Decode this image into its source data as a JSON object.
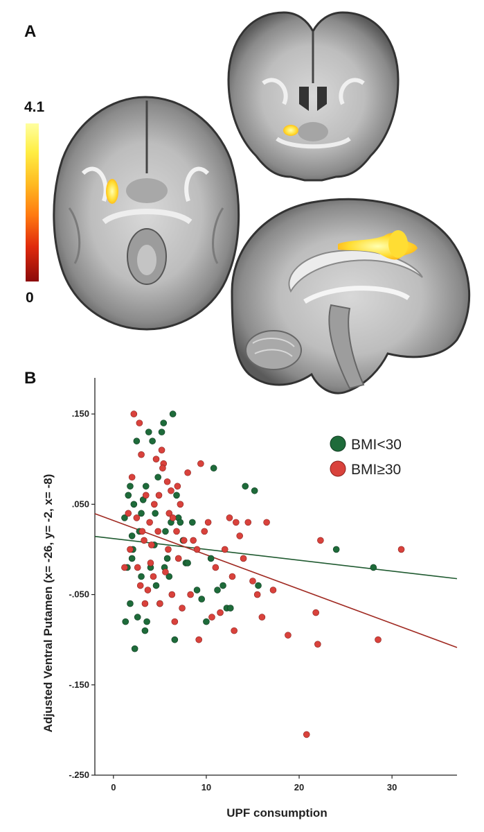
{
  "panels": {
    "a_label": "A",
    "b_label": "B"
  },
  "colorbar": {
    "max_label": "4.1",
    "min_label": "0",
    "colors": [
      "#ffffa0",
      "#ffee44",
      "#ffbb22",
      "#ff7a10",
      "#e02a0c",
      "#8b0a0a"
    ]
  },
  "brain_views": [
    {
      "view": "axial",
      "activation": "left ventral putamen"
    },
    {
      "view": "coronal",
      "activation": "left ventral putamen"
    },
    {
      "view": "sagittal",
      "activation": "cingulate cortex"
    }
  ],
  "chart_data": {
    "type": "scatter",
    "title": "",
    "xlabel": "UPF consumption",
    "ylabel": "Adjusted Ventral Putamen (x= -26, y= -2, x= -8)",
    "xlim": [
      -2,
      37
    ],
    "ylim": [
      -0.25,
      0.19
    ],
    "xticks": [
      0,
      10,
      20,
      30
    ],
    "xtick_labels": [
      "0",
      "10",
      "20",
      "30"
    ],
    "yticks": [
      -0.25,
      -0.15,
      -0.05,
      0.05,
      0.15
    ],
    "ytick_labels": [
      "-.250",
      "-.150",
      "-.050",
      ".050",
      ".150"
    ],
    "grid": false,
    "legend_position": "top-right",
    "series": [
      {
        "name": "BMI<30",
        "color": "#1e6b3a",
        "fit": {
          "intercept": 0.012,
          "slope": -0.0012
        },
        "points": [
          [
            1.2,
            0.035
          ],
          [
            1.5,
            -0.02
          ],
          [
            1.6,
            0.06
          ],
          [
            1.8,
            0.07
          ],
          [
            1.3,
            -0.08
          ],
          [
            2.0,
            -0.01
          ],
          [
            2.2,
            0.05
          ],
          [
            2.1,
            0.0
          ],
          [
            2.3,
            -0.11
          ],
          [
            2.5,
            0.12
          ],
          [
            2.6,
            -0.075
          ],
          [
            2.8,
            0.02
          ],
          [
            3.0,
            0.04
          ],
          [
            3.2,
            0.055
          ],
          [
            3.4,
            -0.09
          ],
          [
            3.5,
            0.07
          ],
          [
            3.8,
            0.13
          ],
          [
            4.0,
            -0.02
          ],
          [
            4.2,
            0.12
          ],
          [
            4.4,
            0.005
          ],
          [
            4.6,
            -0.04
          ],
          [
            4.8,
            0.08
          ],
          [
            5.0,
            -0.06
          ],
          [
            5.2,
            0.13
          ],
          [
            5.4,
            0.14
          ],
          [
            5.6,
            0.02
          ],
          [
            5.8,
            -0.01
          ],
          [
            6.0,
            -0.03
          ],
          [
            6.2,
            0.03
          ],
          [
            6.4,
            0.15
          ],
          [
            6.6,
            -0.1
          ],
          [
            6.8,
            0.06
          ],
          [
            7.0,
            0.035
          ],
          [
            7.2,
            0.03
          ],
          [
            7.5,
            0.01
          ],
          [
            7.8,
            -0.015
          ],
          [
            8.0,
            -0.015
          ],
          [
            8.5,
            0.03
          ],
          [
            9.0,
            -0.045
          ],
          [
            9.5,
            -0.055
          ],
          [
            10.0,
            -0.08
          ],
          [
            10.5,
            -0.01
          ],
          [
            10.8,
            0.09
          ],
          [
            11.2,
            -0.045
          ],
          [
            11.8,
            -0.04
          ],
          [
            12.2,
            -0.065
          ],
          [
            12.6,
            -0.065
          ],
          [
            14.2,
            0.07
          ],
          [
            15.2,
            0.065
          ],
          [
            15.6,
            -0.04
          ],
          [
            24.0,
            0.0
          ],
          [
            28.0,
            -0.02
          ],
          [
            1.8,
            -0.06
          ],
          [
            3.6,
            -0.08
          ],
          [
            4.5,
            0.04
          ],
          [
            2.0,
            0.015
          ],
          [
            5.5,
            -0.02
          ],
          [
            3.0,
            -0.03
          ]
        ]
      },
      {
        "name": "BMI≥30",
        "color": "#d9423c",
        "fit": {
          "intercept": 0.032,
          "slope": -0.0038
        },
        "points": [
          [
            1.2,
            -0.02
          ],
          [
            1.8,
            0.0
          ],
          [
            2.2,
            0.15
          ],
          [
            2.5,
            0.035
          ],
          [
            2.8,
            0.14
          ],
          [
            2.9,
            -0.04
          ],
          [
            3.1,
            0.02
          ],
          [
            3.3,
            0.01
          ],
          [
            3.5,
            0.06
          ],
          [
            3.7,
            -0.045
          ],
          [
            3.9,
            0.03
          ],
          [
            4.1,
            0.005
          ],
          [
            4.3,
            -0.03
          ],
          [
            4.4,
            0.05
          ],
          [
            4.6,
            0.1
          ],
          [
            4.8,
            0.02
          ],
          [
            5.0,
            -0.06
          ],
          [
            5.2,
            0.11
          ],
          [
            5.4,
            0.095
          ],
          [
            5.6,
            -0.025
          ],
          [
            5.8,
            0.075
          ],
          [
            6.0,
            0.04
          ],
          [
            6.2,
            0.065
          ],
          [
            6.4,
            0.035
          ],
          [
            6.6,
            -0.08
          ],
          [
            6.8,
            0.02
          ],
          [
            7.0,
            -0.01
          ],
          [
            7.2,
            0.05
          ],
          [
            7.6,
            0.01
          ],
          [
            8.0,
            0.085
          ],
          [
            8.3,
            -0.05
          ],
          [
            8.6,
            0.01
          ],
          [
            9.0,
            0.0
          ],
          [
            9.2,
            -0.1
          ],
          [
            9.4,
            0.095
          ],
          [
            9.8,
            0.02
          ],
          [
            10.2,
            0.03
          ],
          [
            10.6,
            -0.075
          ],
          [
            11.0,
            -0.02
          ],
          [
            11.5,
            -0.07
          ],
          [
            12.0,
            0.0
          ],
          [
            12.5,
            0.035
          ],
          [
            12.8,
            -0.03
          ],
          [
            13.0,
            -0.09
          ],
          [
            13.2,
            0.03
          ],
          [
            13.6,
            0.015
          ],
          [
            14.0,
            -0.01
          ],
          [
            14.5,
            0.03
          ],
          [
            15.0,
            -0.035
          ],
          [
            15.5,
            -0.05
          ],
          [
            16.0,
            -0.075
          ],
          [
            16.5,
            0.03
          ],
          [
            17.2,
            -0.045
          ],
          [
            18.8,
            -0.095
          ],
          [
            21.8,
            -0.07
          ],
          [
            22.0,
            -0.105
          ],
          [
            22.3,
            0.01
          ],
          [
            20.8,
            -0.205
          ],
          [
            28.5,
            -0.1
          ],
          [
            31.0,
            0.0
          ],
          [
            2.0,
            0.08
          ],
          [
            3.4,
            -0.06
          ],
          [
            5.3,
            0.09
          ],
          [
            4.0,
            -0.015
          ],
          [
            6.3,
            -0.05
          ],
          [
            3.0,
            0.105
          ],
          [
            1.6,
            0.04
          ],
          [
            7.4,
            -0.065
          ],
          [
            5.9,
            0.0
          ],
          [
            2.6,
            -0.02
          ],
          [
            4.9,
            0.06
          ],
          [
            6.9,
            0.07
          ]
        ]
      }
    ]
  }
}
